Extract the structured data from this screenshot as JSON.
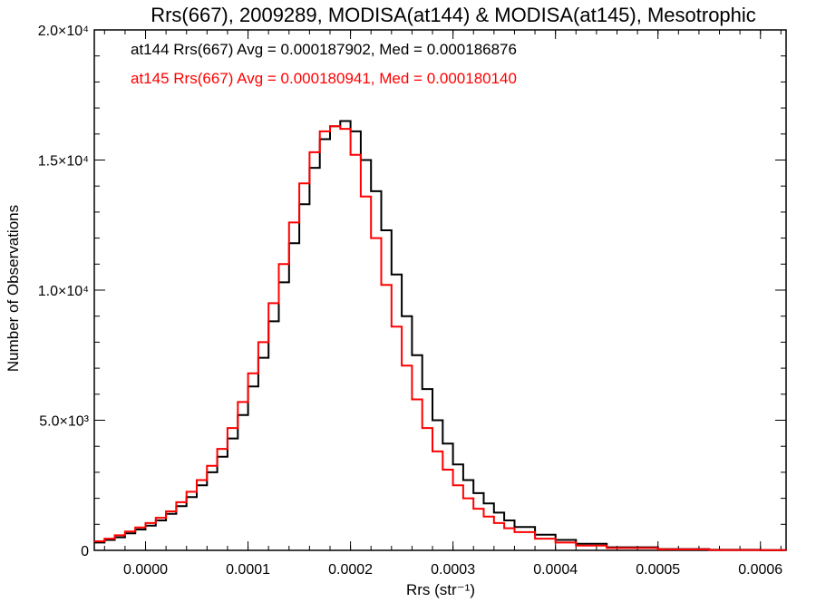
{
  "chart_data": {
    "type": "line",
    "title": "Rrs(667), 2009289, MODISA(at144) & MODISA(at145), Mesotrophic",
    "xlabel": "Rrs (str⁻¹)",
    "ylabel": "Number of Observations",
    "xlim": [
      -5e-05,
      0.000625
    ],
    "ylim": [
      0,
      20000
    ],
    "xticks": [
      {
        "value": 0.0,
        "label": "0.0000"
      },
      {
        "value": 0.0001,
        "label": "0.0001"
      },
      {
        "value": 0.0002,
        "label": "0.0002"
      },
      {
        "value": 0.0003,
        "label": "0.0003"
      },
      {
        "value": 0.0004,
        "label": "0.0004"
      },
      {
        "value": 0.0005,
        "label": "0.0005"
      },
      {
        "value": 0.0006,
        "label": "0.0006"
      }
    ],
    "yticks": [
      {
        "value": 0,
        "label": "0"
      },
      {
        "value": 5000,
        "label": "5.0×10³"
      },
      {
        "value": 10000,
        "label": "1.0×10⁴"
      },
      {
        "value": 15000,
        "label": "1.5×10⁴"
      },
      {
        "value": 20000,
        "label": "2.0×10⁴"
      }
    ],
    "x": [
      -5e-05,
      -4e-05,
      -3e-05,
      -2e-05,
      -1e-05,
      0.0,
      1e-05,
      2e-05,
      3e-05,
      4e-05,
      5e-05,
      6e-05,
      7e-05,
      8e-05,
      9e-05,
      0.0001,
      0.00011,
      0.00012,
      0.00013,
      0.00014,
      0.00015,
      0.00016,
      0.00017,
      0.00018,
      0.00019,
      0.0002,
      0.00021,
      0.00022,
      0.00023,
      0.00024,
      0.00025,
      0.00026,
      0.00027,
      0.00028,
      0.00029,
      0.0003,
      0.00031,
      0.00032,
      0.00033,
      0.00034,
      0.00035,
      0.00036,
      0.00038,
      0.0004,
      0.00042,
      0.00045,
      0.0005,
      0.00055,
      0.0006,
      0.000625
    ],
    "series": [
      {
        "name": "at144",
        "color": "#000000",
        "stat_label": "at144 Rrs(667) Avg = 0.000187902, Med = 0.000186876",
        "values": [
          300,
          400,
          500,
          650,
          800,
          950,
          1150,
          1400,
          1700,
          2050,
          2500,
          3000,
          3600,
          4300,
          5200,
          6300,
          7400,
          8800,
          10300,
          11800,
          13300,
          14700,
          15800,
          16300,
          16500,
          16100,
          15000,
          13800,
          12300,
          10600,
          9000,
          7500,
          6200,
          5000,
          4100,
          3300,
          2700,
          2200,
          1800,
          1450,
          1150,
          900,
          600,
          400,
          250,
          120,
          50,
          20,
          10,
          5
        ]
      },
      {
        "name": "at145",
        "color": "#ff0000",
        "stat_label": "at145 Rrs(667) Avg = 0.000180941, Med = 0.000180140",
        "values": [
          350,
          450,
          580,
          720,
          880,
          1050,
          1250,
          1500,
          1850,
          2250,
          2700,
          3250,
          3900,
          4700,
          5700,
          6800,
          8000,
          9500,
          11000,
          12600,
          14100,
          15300,
          16100,
          16300,
          16200,
          15200,
          13600,
          12000,
          10200,
          8600,
          7100,
          5800,
          4700,
          3800,
          3100,
          2500,
          2000,
          1600,
          1300,
          1050,
          850,
          700,
          450,
          300,
          180,
          90,
          40,
          15,
          8,
          4
        ]
      }
    ]
  }
}
